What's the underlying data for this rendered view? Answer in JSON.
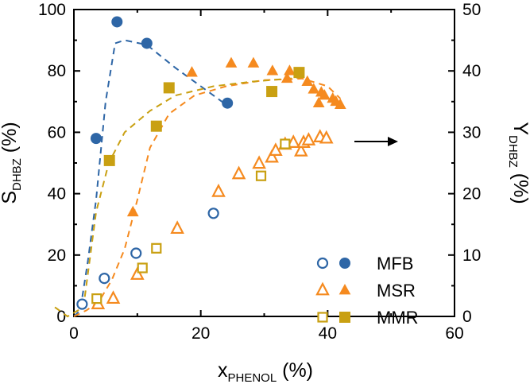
{
  "chart_data": {
    "type": "scatter",
    "xlabel": {
      "main": "x",
      "sub": "PHENOL",
      "unit": " (%)"
    },
    "ylabel_left": {
      "main": "S",
      "sub": "DHBZ",
      "unit": " (%)"
    },
    "ylabel_right": {
      "main": "Y",
      "sub": "DHBZ",
      "unit": " (%)"
    },
    "xlim": [
      0,
      60
    ],
    "ylim_left": [
      0,
      100
    ],
    "ylim_right": [
      0,
      50
    ],
    "x_ticks": [
      "0",
      "20",
      "40",
      "60"
    ],
    "y_left_ticks": [
      "0",
      "20",
      "40",
      "60",
      "80",
      "100"
    ],
    "y_right_ticks": [
      "0",
      "10",
      "20",
      "30",
      "40",
      "50"
    ],
    "colors": {
      "MFB": "#2e66a6",
      "MSR": "#f58a1f",
      "MMR": "#c9a012"
    },
    "legend": {
      "position": "bottom-right",
      "entries": [
        "MFB",
        "MSR",
        "MMR"
      ]
    },
    "arrow_annotation": {
      "direction": "right"
    },
    "series": [
      {
        "name": "MFB",
        "variant": "selectivity",
        "axis": "left",
        "marker": "filled-circle",
        "points": [
          [
            6.8,
            96
          ],
          [
            11.5,
            89
          ],
          [
            24.2,
            69.5
          ],
          [
            3.5,
            58
          ]
        ]
      },
      {
        "name": "MFB",
        "variant": "yield",
        "axis": "right",
        "marker": "open-circle",
        "points": [
          [
            1.3,
            2
          ],
          [
            4.8,
            6.2
          ],
          [
            9.8,
            10.3
          ],
          [
            22,
            16.8
          ]
        ]
      },
      {
        "name": "MSR",
        "variant": "selectivity",
        "axis": "left",
        "marker": "filled-triangle",
        "points": [
          [
            9.3,
            34
          ],
          [
            18.6,
            79.5
          ],
          [
            24.8,
            82.5
          ],
          [
            28.3,
            82.5
          ],
          [
            31.3,
            80
          ],
          [
            33.6,
            77.5
          ],
          [
            34,
            80
          ],
          [
            36.8,
            76.5
          ],
          [
            37.8,
            74
          ],
          [
            38.6,
            69.5
          ],
          [
            39,
            73
          ],
          [
            39.5,
            72
          ],
          [
            40.8,
            71
          ],
          [
            41.3,
            70
          ],
          [
            42,
            69
          ]
        ]
      },
      {
        "name": "MSR",
        "variant": "yield",
        "axis": "right",
        "marker": "open-triangle",
        "points": [
          [
            3.8,
            2
          ],
          [
            6.2,
            2.9
          ],
          [
            10,
            6.8
          ],
          [
            16.3,
            14.3
          ],
          [
            22.8,
            20.3
          ],
          [
            26,
            23.2
          ],
          [
            29.2,
            24.9
          ],
          [
            31.2,
            25.9
          ],
          [
            31.8,
            27
          ],
          [
            33.3,
            28
          ],
          [
            34.6,
            28.3
          ],
          [
            35.8,
            26.9
          ],
          [
            36.2,
            28.3
          ],
          [
            37,
            28.7
          ],
          [
            38.8,
            29.2
          ],
          [
            39.8,
            29
          ]
        ]
      },
      {
        "name": "MMR",
        "variant": "selectivity",
        "axis": "left",
        "marker": "filled-square",
        "points": [
          [
            5.6,
            50.8
          ],
          [
            13,
            62
          ],
          [
            15,
            74.5
          ],
          [
            31.2,
            73.3
          ],
          [
            35.5,
            79.5
          ]
        ]
      },
      {
        "name": "MMR",
        "variant": "yield",
        "axis": "right",
        "marker": "open-square",
        "points": [
          [
            3.6,
            2.9
          ],
          [
            10.8,
            7.9
          ],
          [
            13,
            11.1
          ],
          [
            29.5,
            22.9
          ],
          [
            33.3,
            28.1
          ]
        ]
      }
    ],
    "fit_curves": [
      {
        "name": "MFB",
        "points": [
          [
            0,
            0
          ],
          [
            1,
            2
          ],
          [
            2.2,
            18
          ],
          [
            3.5,
            38
          ],
          [
            5,
            70
          ],
          [
            6.5,
            89
          ],
          [
            8,
            90
          ],
          [
            11.5,
            88.5
          ],
          [
            16,
            81
          ],
          [
            20,
            75
          ],
          [
            24,
            69
          ]
        ]
      },
      {
        "name": "MSR",
        "points": [
          [
            0,
            0
          ],
          [
            2,
            2
          ],
          [
            4,
            5
          ],
          [
            6,
            12
          ],
          [
            8,
            22
          ],
          [
            10,
            38
          ],
          [
            12,
            55
          ],
          [
            15,
            66
          ],
          [
            19,
            72
          ],
          [
            24,
            75
          ],
          [
            30,
            77
          ],
          [
            36,
            77.5
          ],
          [
            40,
            75
          ],
          [
            42,
            71
          ]
        ]
      },
      {
        "name": "MMR",
        "points": [
          [
            -3,
            3
          ],
          [
            -1,
            0
          ],
          [
            1.5,
            3
          ],
          [
            3.5,
            34
          ],
          [
            5.5,
            50
          ],
          [
            8,
            60
          ],
          [
            12,
            67
          ],
          [
            16,
            72
          ],
          [
            22,
            75
          ],
          [
            28,
            76.5
          ],
          [
            34,
            77.5
          ],
          [
            36,
            78
          ]
        ]
      }
    ]
  }
}
